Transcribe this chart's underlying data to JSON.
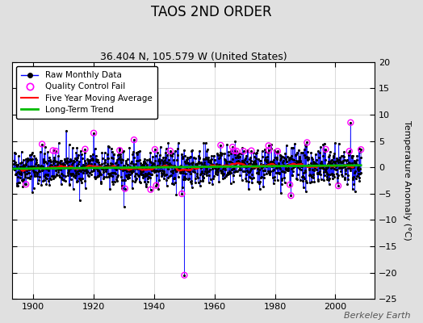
{
  "title": "TAOS 2ND ORDER",
  "subtitle": "36.404 N, 105.579 W (United States)",
  "ylabel": "Temperature Anomaly (°C)",
  "watermark": "Berkeley Earth",
  "xlim": [
    1893,
    2013
  ],
  "ylim": [
    -25,
    20
  ],
  "yticks": [
    -25,
    -20,
    -15,
    -10,
    -5,
    0,
    5,
    10,
    15,
    20
  ],
  "xticks": [
    1900,
    1920,
    1940,
    1960,
    1980,
    2000
  ],
  "raw_color": "#0000ff",
  "ma_color": "#ff0000",
  "trend_color": "#00bb00",
  "qc_color": "#ff00ff",
  "plot_bg": "#ffffff",
  "fig_bg": "#e0e0e0",
  "seed": 42,
  "n_months": 1380,
  "start_year": 1893.5,
  "end_year": 2008.5
}
